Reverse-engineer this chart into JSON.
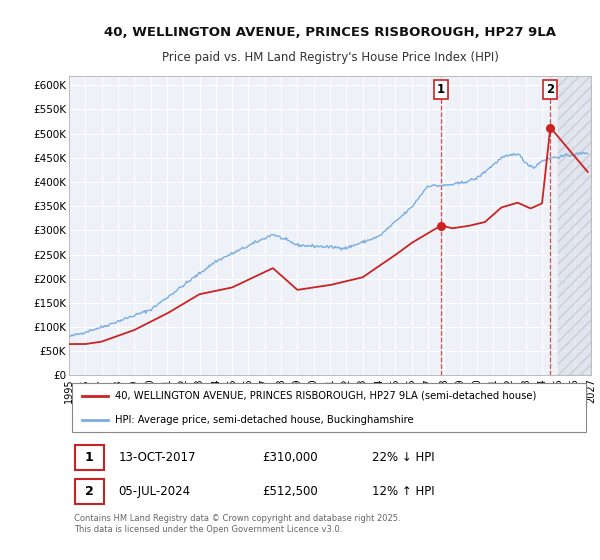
{
  "title_line1": "40, WELLINGTON AVENUE, PRINCES RISBOROUGH, HP27 9LA",
  "title_line2": "Price paid vs. HM Land Registry's House Price Index (HPI)",
  "xlim_start": 1995,
  "xlim_end": 2027,
  "ylim": [
    0,
    620000
  ],
  "yticks": [
    0,
    50000,
    100000,
    150000,
    200000,
    250000,
    300000,
    350000,
    400000,
    450000,
    500000,
    550000,
    600000
  ],
  "ytick_labels": [
    "£0",
    "£50K",
    "£100K",
    "£150K",
    "£200K",
    "£250K",
    "£300K",
    "£350K",
    "£400K",
    "£450K",
    "£500K",
    "£550K",
    "£600K"
  ],
  "background_color": "#ffffff",
  "plot_bg_color": "#eef2f8",
  "grid_color": "#ffffff",
  "red_line_color": "#cc2222",
  "blue_line_color": "#7aade0",
  "marker1_x": 2017.79,
  "marker1_y": 310000,
  "marker2_x": 2024.51,
  "marker2_y": 512500,
  "hatch_start": 2025.0,
  "legend_red_label": "40, WELLINGTON AVENUE, PRINCES RISBOROUGH, HP27 9LA (semi-detached house)",
  "legend_blue_label": "HPI: Average price, semi-detached house, Buckinghamshire",
  "annotation1_date": "13-OCT-2017",
  "annotation1_price": "£310,000",
  "annotation1_hpi": "22% ↓ HPI",
  "annotation2_date": "05-JUL-2024",
  "annotation2_price": "£512,500",
  "annotation2_hpi": "12% ↑ HPI",
  "footer": "Contains HM Land Registry data © Crown copyright and database right 2025.\nThis data is licensed under the Open Government Licence v3.0."
}
